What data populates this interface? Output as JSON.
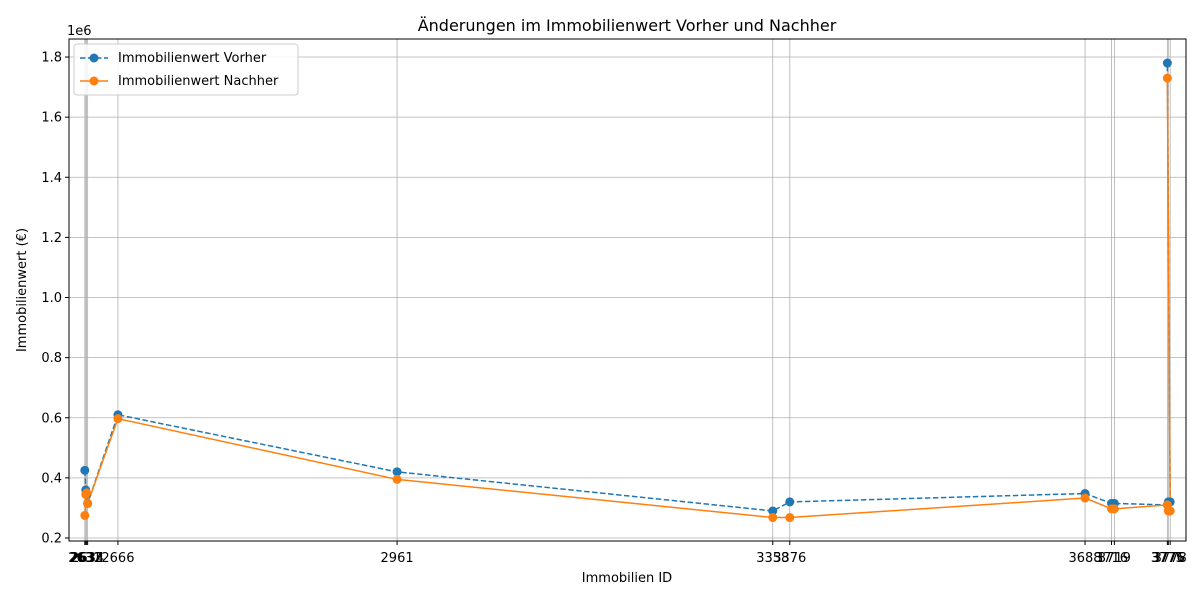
{
  "chart_data": {
    "type": "line",
    "title": "Änderungen im Immobilienwert Vorher und Nachher",
    "xlabel": "Immobilien ID",
    "ylabel": "Immobilienwert (€)",
    "y_offset_label": "1e6",
    "ylim": [
      0.19,
      1.86
    ],
    "xlim": [
      2614.3,
      3794.7
    ],
    "yticks": [
      "0.2",
      "0.4",
      "0.6",
      "0.8",
      "1.0",
      "1.2",
      "1.4",
      "1.6",
      "1.8"
    ],
    "xtick_labels": [
      "2631",
      "2632",
      "2633",
      "2634",
      "2666",
      "2961",
      "3358",
      "3376",
      "3688",
      "3716",
      "3719",
      "3775",
      "3776",
      "3778"
    ],
    "grid": true,
    "legend_position": "top-left",
    "x": [
      2631,
      2632,
      2633,
      2634,
      2666,
      2961,
      3358,
      3376,
      3688,
      3716,
      3719,
      3775,
      3776,
      3778,
      3775
    ],
    "series": [
      {
        "name": "Immobilienwert Vorher",
        "style": "dashed",
        "color": "#1f77b4",
        "values": [
          0.425,
          0.36,
          0.345,
          0.315,
          0.61,
          0.42,
          0.29,
          0.32,
          0.348,
          0.315,
          0.315,
          0.31,
          0.32,
          0.32,
          1.78
        ]
      },
      {
        "name": "Immobilienwert Nachher",
        "style": "solid",
        "color": "#ff7f0e",
        "values": [
          0.275,
          0.345,
          0.35,
          0.315,
          0.597,
          0.395,
          0.268,
          0.268,
          0.333,
          0.297,
          0.297,
          0.31,
          0.29,
          0.29,
          1.73
        ]
      }
    ]
  }
}
